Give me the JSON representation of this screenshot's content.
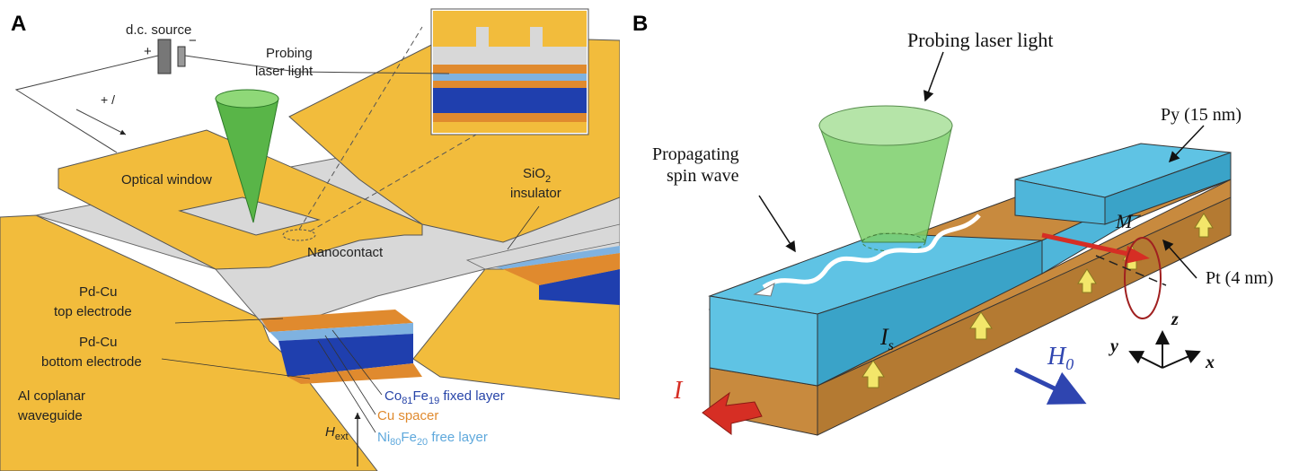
{
  "panel_a": {
    "letter": "A",
    "dc_source": "d.c. source",
    "plus": "+",
    "minus": "−",
    "current_label": "+ /",
    "probing_line1": "Probing",
    "probing_line2": "laser light",
    "optical_window": "Optical window",
    "sio2_line1": "SiO",
    "sio2_sub": "2",
    "sio2_line2": "insulator",
    "nanocontact": "Nanocontact",
    "top_electrode_line1": "Pd-Cu",
    "top_electrode_line2": "top electrode",
    "bottom_electrode_line1": "Pd-Cu",
    "bottom_electrode_line2": "bottom electrode",
    "waveguide_line1": "Al coplanar",
    "waveguide_line2": "waveguide",
    "fixed_a": "Co",
    "fixed_sub1": "81",
    "fixed_b": "Fe",
    "fixed_sub2": "19",
    "fixed_c": " fixed layer",
    "spacer": "Cu spacer",
    "free_a": "Ni",
    "free_sub1": "80",
    "free_b": "Fe",
    "free_sub2": "20",
    "free_c": " free layer",
    "hext": "H",
    "hext_sub": "ext",
    "colors": {
      "gold": "#f2bc3c",
      "gold_dark": "#d9a12a",
      "gray": "#d8d8d8",
      "orange": "#e08a2e",
      "light_blue": "#7fb2e0",
      "dark_blue": "#1f3fae",
      "green": "#59b548",
      "fixed_text": "#2744a8",
      "spacer_text": "#e08a2e",
      "free_text": "#5ea8dc"
    }
  },
  "panel_b": {
    "letter": "B",
    "probing": "Probing laser light",
    "propagating_line1": "Propagating",
    "propagating_line2": "spin wave",
    "py": "Py (15 nm)",
    "pt": "Pt (4 nm)",
    "m": "M",
    "is_main": "I",
    "is_sub": "s",
    "i": "I",
    "h0_main": "H",
    "h0_sub": "0",
    "axis_x": "x",
    "axis_y": "y",
    "axis_z": "z",
    "colors": {
      "cyan": "#5fc3e4",
      "cyan_dark": "#3aa3c8",
      "brown": "#c88a3e",
      "yellow": "#f3e66a",
      "red": "#d62e24",
      "blue": "#2f45b0",
      "green": "#7ccf6a"
    }
  }
}
